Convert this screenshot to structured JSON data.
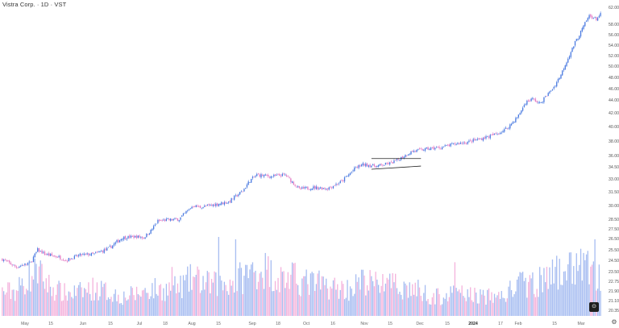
{
  "header": {
    "title": "Vistra Corp. · 1D · VST"
  },
  "colors": {
    "up": "#4a7ae0",
    "down": "#e37ac4",
    "vol_up": "#a7bdf1",
    "vol_down": "#f4b3dc",
    "trendline": "#222222"
  },
  "icons": {
    "reset": "reset-zoom-icon",
    "settings": "gear-icon"
  },
  "chart_data": {
    "type": "candlestick",
    "title": "Vistra Corp. · 1D · VST",
    "y_ticks": [
      "62.00",
      "58.00",
      "56.00",
      "54.00",
      "52.00",
      "50.00",
      "48.00",
      "46.00",
      "44.00",
      "42.00",
      "40.00",
      "38.00",
      "36.00",
      "34.50",
      "33.00",
      "31.50",
      "30.00",
      "28.50",
      "27.50",
      "26.50",
      "25.50",
      "24.50",
      "23.50",
      "22.75",
      "21.90",
      "21.10",
      "20.35"
    ],
    "x_ticks": [
      {
        "label": "May",
        "bold": false
      },
      {
        "label": "15",
        "bold": false
      },
      {
        "label": "Jun",
        "bold": false
      },
      {
        "label": "15",
        "bold": false
      },
      {
        "label": "Jul",
        "bold": false
      },
      {
        "label": "18",
        "bold": false
      },
      {
        "label": "Aug",
        "bold": false
      },
      {
        "label": "15",
        "bold": false
      },
      {
        "label": "Sep",
        "bold": false
      },
      {
        "label": "18",
        "bold": false
      },
      {
        "label": "Oct",
        "bold": false
      },
      {
        "label": "16",
        "bold": false
      },
      {
        "label": "Nov",
        "bold": false
      },
      {
        "label": "15",
        "bold": false
      },
      {
        "label": "Dec",
        "bold": false
      },
      {
        "label": "15",
        "bold": false
      },
      {
        "label": "2024",
        "bold": true
      },
      {
        "label": "17",
        "bold": false
      },
      {
        "label": "Feb",
        "bold": false
      },
      {
        "label": "15",
        "bold": false
      },
      {
        "label": "Mar",
        "bold": false
      }
    ],
    "close_path": [
      [
        0,
        24.6
      ],
      [
        10,
        23.9
      ],
      [
        20,
        24.3
      ],
      [
        25,
        25.5
      ],
      [
        30,
        25.1
      ],
      [
        40,
        24.8
      ],
      [
        45,
        24.5
      ],
      [
        55,
        25.0
      ],
      [
        65,
        25.1
      ],
      [
        75,
        25.6
      ],
      [
        80,
        26.1
      ],
      [
        85,
        26.6
      ],
      [
        95,
        26.7
      ],
      [
        100,
        26.6
      ],
      [
        105,
        27.3
      ],
      [
        110,
        28.3
      ],
      [
        115,
        28.4
      ],
      [
        125,
        28.5
      ],
      [
        130,
        29.3
      ],
      [
        135,
        30.0
      ],
      [
        140,
        29.8
      ],
      [
        150,
        30.1
      ],
      [
        160,
        30.4
      ],
      [
        170,
        31.6
      ],
      [
        175,
        32.8
      ],
      [
        180,
        33.5
      ],
      [
        190,
        33.3
      ],
      [
        200,
        33.5
      ],
      [
        210,
        31.8
      ],
      [
        220,
        32.0
      ],
      [
        230,
        31.9
      ],
      [
        240,
        32.7
      ],
      [
        250,
        34.4
      ],
      [
        255,
        34.8
      ],
      [
        265,
        34.6
      ],
      [
        275,
        35.0
      ],
      [
        280,
        35.5
      ],
      [
        290,
        36.6
      ],
      [
        300,
        36.9
      ],
      [
        310,
        37.1
      ],
      [
        320,
        37.6
      ],
      [
        330,
        37.9
      ],
      [
        340,
        38.4
      ],
      [
        350,
        39.0
      ],
      [
        355,
        39.5
      ],
      [
        360,
        40.4
      ],
      [
        365,
        41.6
      ],
      [
        370,
        43.6
      ],
      [
        375,
        44.2
      ],
      [
        380,
        43.4
      ],
      [
        385,
        44.8
      ],
      [
        390,
        46.3
      ],
      [
        395,
        48.5
      ],
      [
        400,
        51.5
      ],
      [
        405,
        54.5
      ],
      [
        410,
        57.0
      ],
      [
        415,
        60.0
      ],
      [
        420,
        59.2
      ],
      [
        423,
        60.3
      ]
    ],
    "volume_shape": [
      [
        0,
        0.3
      ],
      [
        10,
        0.32
      ],
      [
        18,
        0.48
      ],
      [
        25,
        0.55
      ],
      [
        35,
        0.35
      ],
      [
        45,
        0.28
      ],
      [
        55,
        0.3
      ],
      [
        65,
        0.35
      ],
      [
        75,
        0.3
      ],
      [
        85,
        0.24
      ],
      [
        95,
        0.28
      ],
      [
        105,
        0.34
      ],
      [
        115,
        0.33
      ],
      [
        125,
        0.36
      ],
      [
        135,
        0.48
      ],
      [
        145,
        0.4
      ],
      [
        155,
        0.4
      ],
      [
        165,
        0.45
      ],
      [
        175,
        0.55
      ],
      [
        185,
        0.6
      ],
      [
        195,
        0.48
      ],
      [
        205,
        0.48
      ],
      [
        215,
        0.42
      ],
      [
        225,
        0.4
      ],
      [
        235,
        0.36
      ],
      [
        245,
        0.34
      ],
      [
        255,
        0.44
      ],
      [
        265,
        0.4
      ],
      [
        275,
        0.38
      ],
      [
        285,
        0.36
      ],
      [
        295,
        0.32
      ],
      [
        305,
        0.24
      ],
      [
        315,
        0.26
      ],
      [
        325,
        0.28
      ],
      [
        335,
        0.26
      ],
      [
        345,
        0.24
      ],
      [
        355,
        0.26
      ],
      [
        365,
        0.4
      ],
      [
        375,
        0.4
      ],
      [
        385,
        0.46
      ],
      [
        395,
        0.56
      ],
      [
        405,
        0.62
      ],
      [
        415,
        0.6
      ],
      [
        420,
        0.5
      ],
      [
        423,
        0.46
      ]
    ],
    "volume_spikes": [
      {
        "bar": 24,
        "level": 0.66
      },
      {
        "bar": 120,
        "level": 0.62
      },
      {
        "bar": 153,
        "level": 1.0
      },
      {
        "bar": 165,
        "level": 0.97
      },
      {
        "bar": 269,
        "level": 0.53
      },
      {
        "bar": 320,
        "level": 0.68
      },
      {
        "bar": 380,
        "level": 0.62
      },
      {
        "bar": 409,
        "level": 0.85
      },
      {
        "bar": 419,
        "level": 0.97
      }
    ],
    "trendlines": [
      {
        "from": {
          "bar": 261,
          "price": 35.6
        },
        "to": {
          "bar": 296,
          "price": 35.6
        }
      },
      {
        "from": {
          "bar": 261,
          "price": 34.2
        },
        "to": {
          "bar": 296,
          "price": 34.6
        }
      }
    ]
  }
}
